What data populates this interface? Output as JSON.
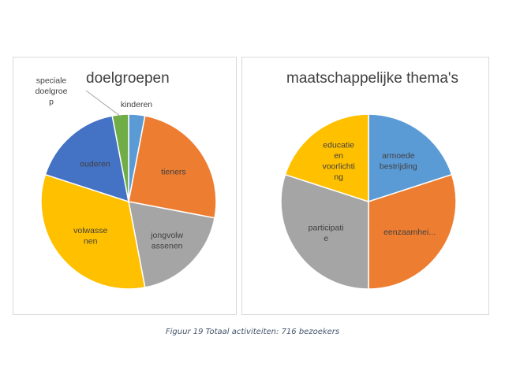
{
  "caption": "Figuur 19 Totaal activiteiten: 716 bezoekers",
  "chart_data": [
    {
      "type": "pie",
      "title": "doelgroepen",
      "categories": [
        "kinderen",
        "tieners",
        "jongvolwassenen",
        "volwassenen",
        "ouderen",
        "speciale doelgroep"
      ],
      "label_lines": [
        [
          "kinderen"
        ],
        [
          "tieners"
        ],
        [
          "jongvolw",
          "assenen"
        ],
        [
          "volwasse",
          "nen"
        ],
        [
          "ouderen"
        ],
        [
          "speciale",
          "doelgroe",
          "p"
        ]
      ],
      "values": [
        3,
        25,
        19,
        33,
        17,
        3
      ],
      "colors": [
        "#5b9bd5",
        "#ed7d31",
        "#a5a5a5",
        "#ffc000",
        "#4472c4",
        "#70ad47"
      ]
    },
    {
      "type": "pie",
      "title": "maatschappelijke thema's",
      "categories": [
        "armoede bestrijding",
        "eenzaamhei...",
        "participatie",
        "educatie en voorlichting"
      ],
      "label_lines": [
        [
          "armoede",
          "bestrijding"
        ],
        [
          "eenzaamhei..."
        ],
        [
          "participati",
          "e"
        ],
        [
          "educatie",
          "en",
          "voorlichti",
          "ng"
        ]
      ],
      "values": [
        20,
        30,
        30,
        20
      ],
      "colors": [
        "#5b9bd5",
        "#ed7d31",
        "#a5a5a5",
        "#ffc000"
      ]
    }
  ]
}
